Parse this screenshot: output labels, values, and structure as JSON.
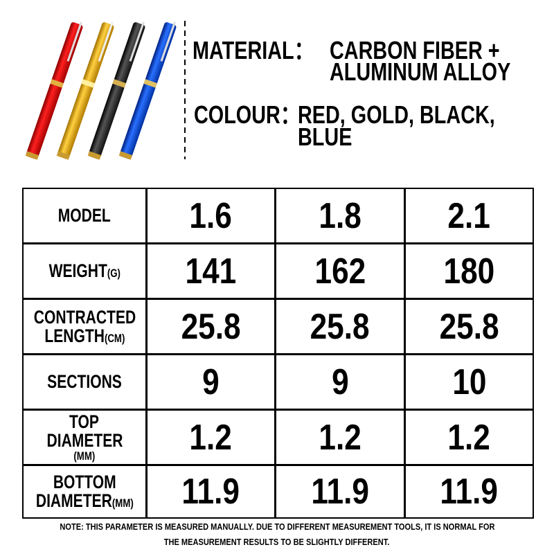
{
  "header": {
    "material": {
      "label": "MATERIAL：",
      "lines": [
        "CARBON FIBER +",
        "ALUMINUM ALLOY"
      ]
    },
    "colour": {
      "label": "COLOUR：",
      "lines": [
        "RED, GOLD, BLACK,",
        "BLUE"
      ]
    }
  },
  "table": {
    "rows": [
      {
        "label": [
          {
            "text": "MODEL"
          }
        ],
        "values": [
          "1.6",
          "1.8",
          "2.1"
        ]
      },
      {
        "label": [
          {
            "text": "WEIGHT",
            "unit": "(G)"
          }
        ],
        "values": [
          "141",
          "162",
          "180"
        ]
      },
      {
        "label": [
          {
            "text": "CONTRACTED"
          },
          {
            "text": "LENGTH",
            "unit": "(CM)"
          }
        ],
        "values": [
          "25.8",
          "25.8",
          "25.8"
        ]
      },
      {
        "label": [
          {
            "text": "SECTIONS"
          }
        ],
        "values": [
          "9",
          "9",
          "10"
        ]
      },
      {
        "label": [
          {
            "text": "TOP"
          },
          {
            "text": "DIAMETER"
          },
          {
            "unit": "(MM)"
          }
        ],
        "values": [
          "1.2",
          "1.2",
          "1.2"
        ]
      },
      {
        "label": [
          {
            "text": "BOTTOM"
          },
          {
            "text": "DIAMETER",
            "unit": "(MM)"
          }
        ],
        "values": [
          "11.9",
          "11.9",
          "11.9"
        ]
      }
    ]
  },
  "note": [
    "NOTE: THIS PARAMETER IS MEASURED MANUALLY. DUE TO DIFFERENT MEASUREMENT TOOLS, IT IS NORMAL FOR",
    "THE MEASUREMENT RESULTS TO BE SLIGHTLY DIFFERENT."
  ]
}
